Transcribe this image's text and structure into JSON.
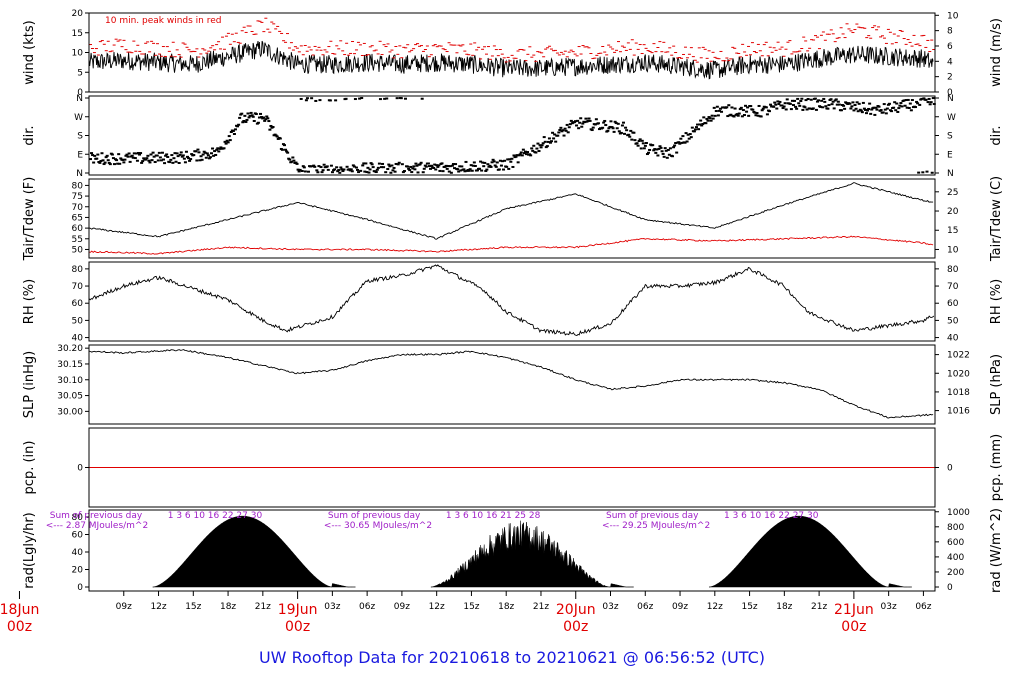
{
  "caption": "UW Rooftop Data for 20210618  to  20210621 @ 06:56:52  (UTC)",
  "colors": {
    "primary": "#000000",
    "peak": "#e00000",
    "dew": "#e00000",
    "pcp": "#e00000",
    "annot": "#a020c8",
    "date": "#e00000",
    "caption": "#1a1adf"
  },
  "chart_data": [
    {
      "id": "wind",
      "type": "line",
      "ylabel_left": "wind (kts)",
      "ylabel_right": "wind (m/s)",
      "ylim": [
        0,
        20
      ],
      "yticks_left": [
        "0",
        "5",
        "10",
        "15",
        "20"
      ],
      "ylim_right": [
        0,
        10.3
      ],
      "yticks_right": [
        "0",
        "2",
        "4",
        "6",
        "8",
        "10"
      ],
      "annotation": "10 min. peak winds in red",
      "series": [
        {
          "role": "mean",
          "color": "#000000",
          "x": [
            6,
            9,
            12,
            15,
            18,
            21,
            24,
            27,
            30,
            33,
            36,
            39,
            42,
            45,
            48,
            51,
            54,
            57,
            60,
            63,
            66,
            69,
            72,
            75,
            78,
            78.9
          ],
          "values": [
            7.5,
            8,
            7.5,
            7,
            9,
            11,
            7,
            7,
            7.5,
            7,
            7.5,
            7,
            6,
            6,
            6.5,
            7,
            7.5,
            6.5,
            5.5,
            7,
            7,
            8.5,
            9.5,
            9,
            8.5,
            7
          ]
        },
        {
          "role": "peak",
          "color": "#e00000",
          "x": [
            6,
            9,
            12,
            15,
            18,
            21,
            24,
            27,
            30,
            33,
            36,
            39,
            42,
            45,
            48,
            51,
            54,
            57,
            60,
            63,
            66,
            69,
            72,
            75,
            78,
            78.9
          ],
          "values": [
            11,
            12,
            11,
            10.5,
            13,
            17,
            11,
            11,
            11,
            10.5,
            11,
            10.5,
            9.5,
            9.5,
            10,
            11,
            11.5,
            10,
            9,
            11,
            11,
            13,
            16,
            14,
            13,
            11
          ]
        }
      ]
    },
    {
      "id": "dir",
      "type": "scatter",
      "ylabel_left": "dir.",
      "ylabel_right": "dir.",
      "yticks_left": [
        "N",
        "E",
        "S",
        "W",
        "N"
      ],
      "yticks_right": [
        "N",
        "E",
        "S",
        "W",
        "N"
      ],
      "ylim": [
        0,
        360
      ],
      "series": [
        {
          "name": "",
          "color": "#000000",
          "x": [
            6,
            10,
            14,
            17,
            19,
            21,
            24,
            30,
            36,
            42,
            48,
            50,
            52,
            54,
            56,
            60,
            64,
            66,
            70,
            74,
            78
          ],
          "values": [
            70,
            70,
            75,
            100,
            260,
            265,
            10,
            20,
            25,
            40,
            240,
            230,
            215,
            115,
            95,
            300,
            295,
            330,
            330,
            300,
            340
          ]
        }
      ]
    },
    {
      "id": "temp",
      "type": "line",
      "ylabel_left": "Tair/Tdew (F)",
      "ylabel_right": "Tair/Tdew (C)",
      "ylim": [
        46,
        83
      ],
      "yticks_left": [
        "50",
        "55",
        "60",
        "65",
        "70",
        "75",
        "80"
      ],
      "yticks_right": [
        "10",
        "15",
        "20",
        "25"
      ],
      "series": [
        {
          "role": "Tair",
          "color": "#000000",
          "x": [
            6,
            12,
            18,
            24,
            30,
            36,
            42,
            48,
            54,
            60,
            66,
            72,
            78,
            78.9
          ],
          "values": [
            60,
            56,
            64,
            72,
            64,
            55,
            69,
            76,
            64,
            60,
            71,
            81,
            73,
            72
          ]
        },
        {
          "role": "Tdew",
          "color": "#e00000",
          "x": [
            6,
            12,
            18,
            24,
            30,
            36,
            42,
            48,
            54,
            60,
            66,
            72,
            78,
            78.9
          ],
          "values": [
            49,
            48,
            51,
            50,
            50,
            49,
            51,
            51,
            55,
            54,
            55,
            56,
            53,
            52
          ]
        }
      ]
    },
    {
      "id": "rh",
      "type": "line",
      "ylabel_left": "RH (%)",
      "ylabel_right": "RH (%)",
      "ylim": [
        38,
        84
      ],
      "yticks_left": [
        "40",
        "50",
        "60",
        "70",
        "80"
      ],
      "yticks_right": [
        "40",
        "50",
        "60",
        "70",
        "80"
      ],
      "series": [
        {
          "role": "rh",
          "color": "#000000",
          "x": [
            6,
            9,
            12,
            18,
            21,
            23,
            27,
            30,
            33,
            36,
            40,
            42,
            45,
            48,
            51,
            54,
            57,
            60,
            63,
            66,
            68,
            72,
            78,
            78.9
          ],
          "values": [
            62,
            70,
            75,
            62,
            50,
            44,
            52,
            73,
            76,
            82,
            68,
            55,
            44,
            42,
            48,
            70,
            70,
            72,
            80,
            70,
            55,
            44,
            50,
            53
          ]
        }
      ]
    },
    {
      "id": "slp",
      "type": "line",
      "ylabel_left": "SLP (inHg)",
      "ylabel_right": "SLP (hPa)",
      "ylim": [
        29.96,
        30.21
      ],
      "yticks_left": [
        "30.00",
        "30.05",
        "30.10",
        "30.15",
        "30.20"
      ],
      "yticks_right": [
        "1016",
        "1018",
        "1020",
        "1022"
      ],
      "series": [
        {
          "role": "slp",
          "color": "#000000",
          "x": [
            6,
            9,
            14,
            18,
            24,
            27,
            30,
            33,
            36,
            39,
            42,
            45,
            48,
            51,
            54,
            57,
            60,
            63,
            66,
            69,
            72,
            75,
            78.9
          ],
          "values": [
            30.19,
            30.185,
            30.195,
            30.17,
            30.12,
            30.13,
            30.16,
            30.18,
            30.18,
            30.19,
            30.17,
            30.14,
            30.1,
            30.07,
            30.08,
            30.1,
            30.1,
            30.1,
            30.09,
            30.07,
            30.02,
            29.98,
            29.99
          ]
        }
      ]
    },
    {
      "id": "pcp",
      "type": "line",
      "ylabel_left": "pcp. (in)",
      "ylabel_right": "pcp. (mm)",
      "ylim": [
        -1,
        1
      ],
      "yticks_left": [
        "0"
      ],
      "yticks_right": [
        "0"
      ],
      "series": [
        {
          "role": "pcp",
          "color": "#e00000",
          "x": [
            6,
            78.9
          ],
          "values": [
            0,
            0
          ]
        }
      ]
    },
    {
      "id": "rad",
      "type": "area",
      "ylabel_left": "rad(Lgly/hr)",
      "ylabel_right": "rad (W/m^2)",
      "ylim": [
        0,
        88
      ],
      "yticks_left": [
        "0",
        "20",
        "40",
        "60",
        "80"
      ],
      "yticks_right": [
        "0",
        "200",
        "400",
        "600",
        "800",
        "1000"
      ],
      "days": [
        {
          "sum_label": "Sum of previous day",
          "sum_value": "<--- 2.87 MJoules/m^2",
          "hours": "1   3   6  10  16   22   27   30",
          "rise": 11.5,
          "set": 27,
          "peak": 81
        },
        {
          "sum_label": "Sum of previous day",
          "sum_value": "<--- 30.65 MJoules/m^2",
          "hours": "1   3   6  10  16   21   25   28",
          "rise": 35.5,
          "set": 51,
          "peak": 76
        },
        {
          "sum_label": "Sum of previous day",
          "sum_value": "<--- 29.25 MJoules/m^2",
          "hours": "1   3   6  10  16   22   27   30",
          "rise": 59.5,
          "set": 75,
          "peak": 81
        }
      ]
    }
  ],
  "xaxis": {
    "ticks": [
      {
        "h": 9,
        "label": "09z"
      },
      {
        "h": 12,
        "label": "12z"
      },
      {
        "h": 15,
        "label": "15z"
      },
      {
        "h": 18,
        "label": "18z"
      },
      {
        "h": 21,
        "label": "21z"
      },
      {
        "h": 27,
        "label": "03z"
      },
      {
        "h": 30,
        "label": "06z"
      },
      {
        "h": 33,
        "label": "09z"
      },
      {
        "h": 36,
        "label": "12z"
      },
      {
        "h": 39,
        "label": "15z"
      },
      {
        "h": 42,
        "label": "18z"
      },
      {
        "h": 45,
        "label": "21z"
      },
      {
        "h": 51,
        "label": "03z"
      },
      {
        "h": 54,
        "label": "06z"
      },
      {
        "h": 57,
        "label": "09z"
      },
      {
        "h": 60,
        "label": "12z"
      },
      {
        "h": 63,
        "label": "15z"
      },
      {
        "h": 66,
        "label": "18z"
      },
      {
        "h": 69,
        "label": "21z"
      },
      {
        "h": 75,
        "label": "03z"
      },
      {
        "h": 78,
        "label": "06z"
      }
    ],
    "days": [
      {
        "h": 0,
        "date": "18Jun",
        "time": "00z"
      },
      {
        "h": 24,
        "date": "19Jun",
        "time": "00z"
      },
      {
        "h": 48,
        "date": "20Jun",
        "time": "00z"
      },
      {
        "h": 72,
        "date": "21Jun",
        "time": "00z"
      }
    ]
  }
}
